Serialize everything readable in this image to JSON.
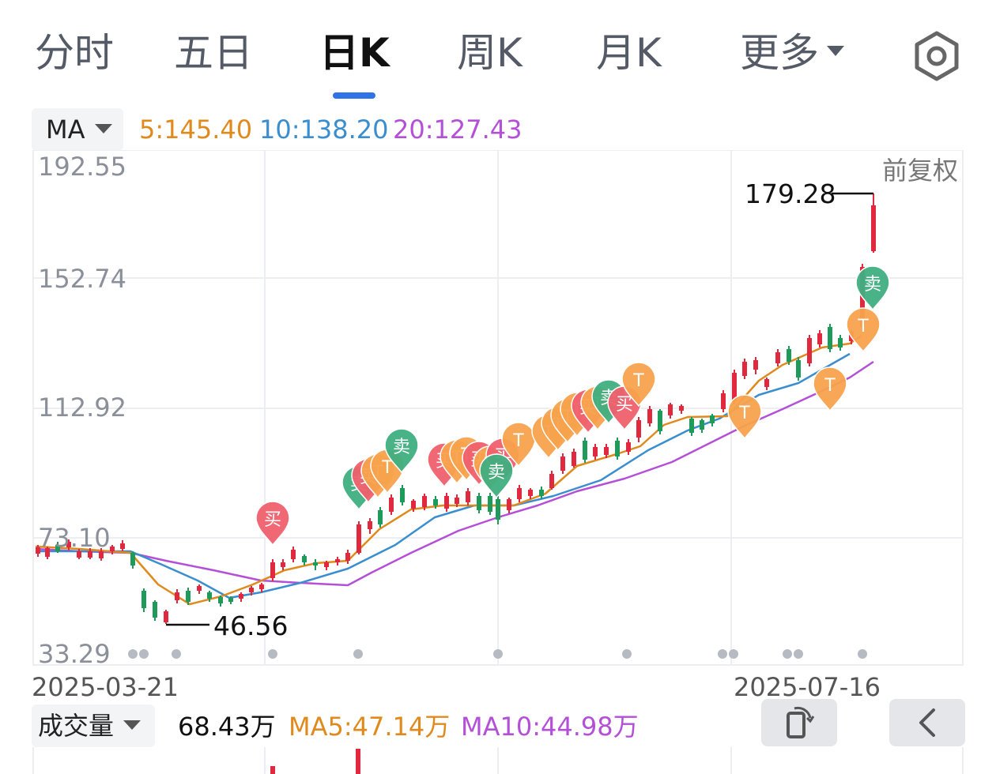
{
  "tabs": [
    {
      "label": "分时",
      "active": false
    },
    {
      "label": "五日",
      "active": false
    },
    {
      "label": "日K",
      "active": true
    },
    {
      "label": "周K",
      "active": false
    },
    {
      "label": "月K",
      "active": false
    },
    {
      "label": "更多",
      "active": false
    }
  ],
  "indicator": {
    "selected": "MA",
    "ma5": "5:145.40",
    "ma10": "10:138.20",
    "ma20": "20:127.43",
    "colors": {
      "ma5": "#e08a1e",
      "ma10": "#3a8ed0",
      "ma20": "#b44fd8"
    }
  },
  "price_axis": [
    "192.55",
    "152.74",
    "112.92",
    "73.10",
    "33.29"
  ],
  "adjust_label": "前复权",
  "high_label": "179.28",
  "low_label": "46.56",
  "dates": {
    "start": "2025-03-21",
    "end": "2025-07-16"
  },
  "markers": {
    "buy": "买",
    "sell": "卖",
    "t": "T"
  },
  "volume": {
    "selected": "成交量",
    "value": "68.43万",
    "ma5": "MA5:47.14万",
    "ma10": "MA10:44.98万"
  },
  "colors": {
    "up": "#e0283f",
    "down": "#1e9a5a",
    "buy": "#f0606e",
    "sell": "#3fae7f",
    "t": "#f7a24c",
    "accent": "#2f73e8"
  },
  "icons": {
    "settings": "hexagon-settings-icon",
    "rotate": "rotate-screen-icon",
    "back": "chevron-left-icon"
  }
}
